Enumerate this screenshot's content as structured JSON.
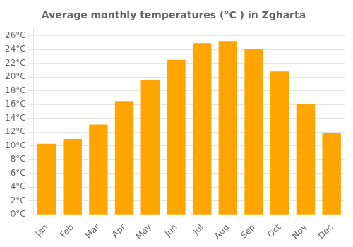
{
  "chart_data": {
    "type": "bar",
    "title": "Average monthly temperatures (°C ) in Zghartā",
    "categories": [
      "Jan",
      "Feb",
      "Mar",
      "Apr",
      "May",
      "Jun",
      "Jul",
      "Aug",
      "Sep",
      "Oct",
      "Nov",
      "Dec"
    ],
    "values": [
      10.3,
      11.0,
      13.1,
      16.5,
      19.6,
      22.5,
      24.9,
      25.2,
      24.0,
      20.8,
      16.1,
      11.9
    ],
    "color": "#FFA500",
    "ylim": [
      0,
      27
    ],
    "yticks": [
      {
        "value": 0,
        "label": "0°C"
      },
      {
        "value": 2,
        "label": "2°C"
      },
      {
        "value": 4,
        "label": "4°C"
      },
      {
        "value": 6,
        "label": "6°C"
      },
      {
        "value": 8,
        "label": "8°C"
      },
      {
        "value": 10,
        "label": "10°C"
      },
      {
        "value": 12,
        "label": "12°C"
      },
      {
        "value": 14,
        "label": "14°C"
      },
      {
        "value": 16,
        "label": "16°C"
      },
      {
        "value": 18,
        "label": "18°C"
      },
      {
        "value": 20,
        "label": "20°C"
      },
      {
        "value": 22,
        "label": "22°C"
      },
      {
        "value": 24,
        "label": "24°C"
      },
      {
        "value": 26,
        "label": "26°C"
      }
    ],
    "grid": true
  }
}
